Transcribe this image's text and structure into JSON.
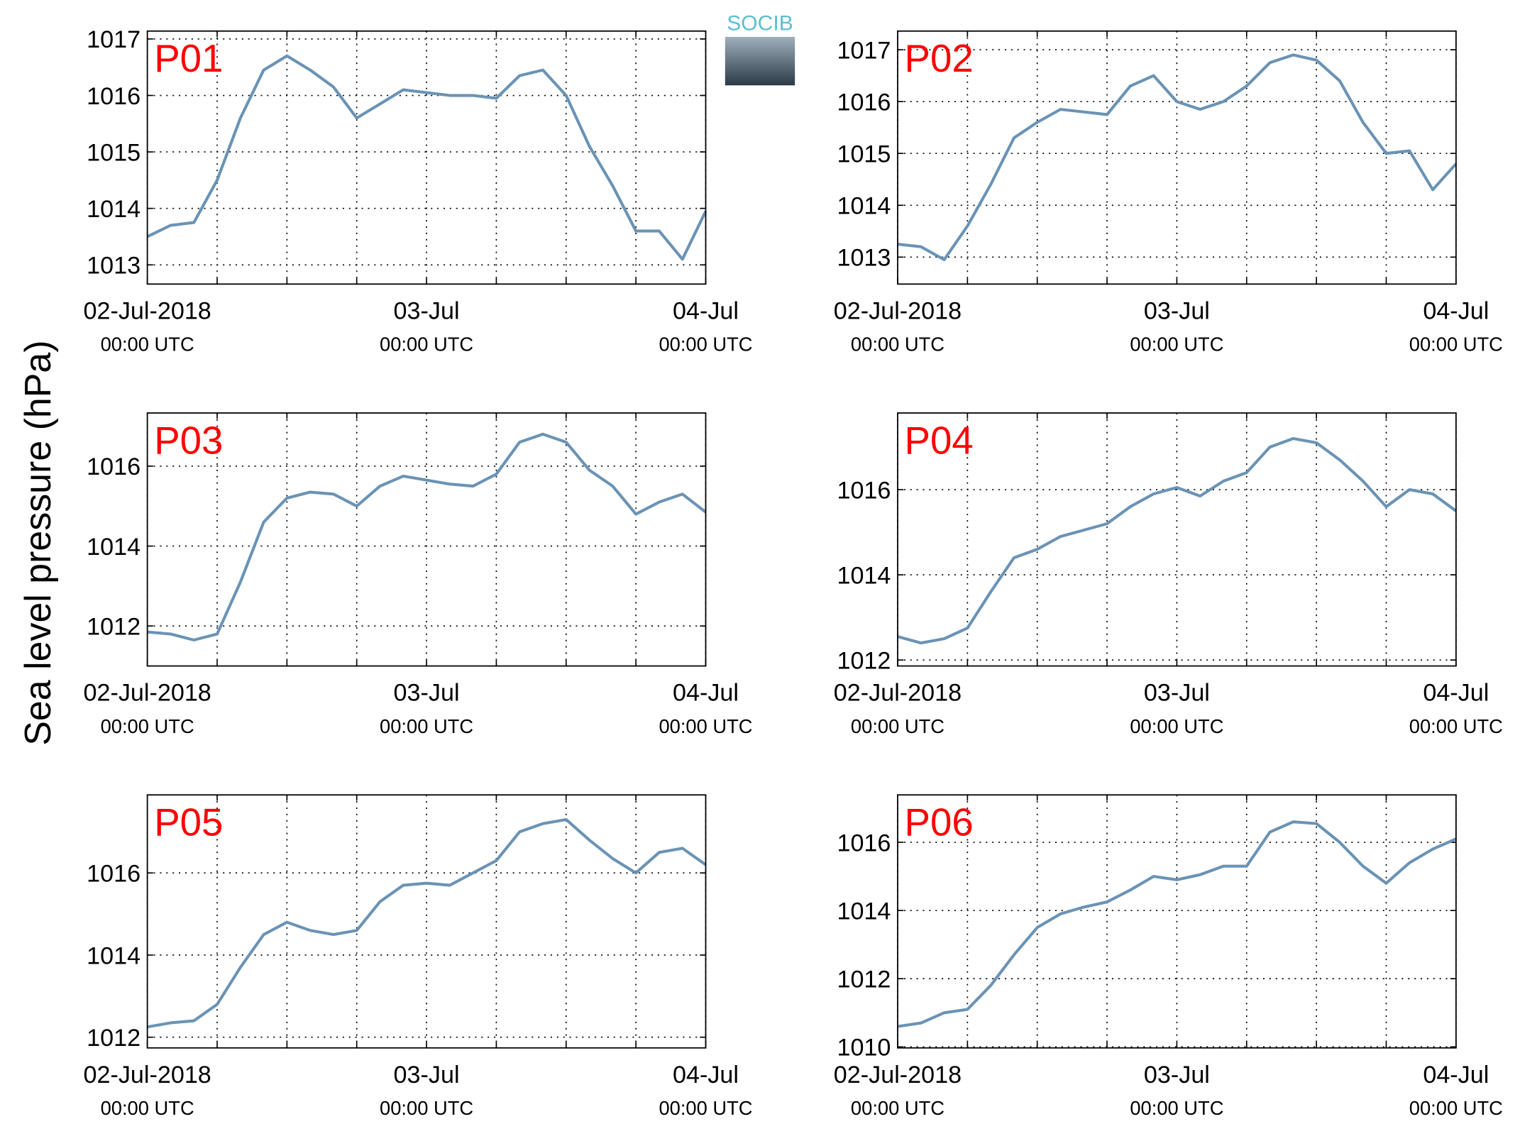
{
  "ylabel": "Sea level pressure (hPa)",
  "logo": "SOCIB",
  "chart_data": [
    {
      "type": "line",
      "title": "P01",
      "color": "#6a93b5",
      "grid": true,
      "x": [
        "2018-07-02T00:00",
        "2018-07-02T02:00",
        "2018-07-02T04:00",
        "2018-07-02T06:00",
        "2018-07-02T08:00",
        "2018-07-02T10:00",
        "2018-07-02T12:00",
        "2018-07-02T14:00",
        "2018-07-02T16:00",
        "2018-07-02T18:00",
        "2018-07-02T20:00",
        "2018-07-02T22:00",
        "2018-07-03T00:00",
        "2018-07-03T02:00",
        "2018-07-03T04:00",
        "2018-07-03T06:00",
        "2018-07-03T08:00",
        "2018-07-03T10:00",
        "2018-07-03T12:00",
        "2018-07-03T14:00",
        "2018-07-03T16:00",
        "2018-07-03T18:00",
        "2018-07-03T20:00",
        "2018-07-03T22:00",
        "2018-07-04T00:00"
      ],
      "values": [
        1013.5,
        1013.7,
        1013.75,
        1014.5,
        1015.6,
        1016.45,
        1016.7,
        1016.45,
        1016.15,
        1015.6,
        1015.85,
        1016.1,
        1016.05,
        1016.0,
        1016.0,
        1015.95,
        1016.35,
        1016.45,
        1016.0,
        1015.1,
        1014.4,
        1013.6,
        1013.6,
        1013.1,
        1013.95
      ],
      "xlim": [
        "2018-07-02T00:00",
        "2018-07-04T00:00"
      ],
      "xticks": [
        {
          "value": "2018-07-02T00:00",
          "label": "02-Jul-2018",
          "sublabel": "00:00 UTC"
        },
        {
          "value": "2018-07-03T00:00",
          "label": "03-Jul",
          "sublabel": "00:00 UTC"
        },
        {
          "value": "2018-07-04T00:00",
          "label": "04-Jul",
          "sublabel": "00:00 UTC"
        }
      ],
      "xminorticks": [
        "2018-07-02T06:00",
        "2018-07-02T12:00",
        "2018-07-02T18:00",
        "2018-07-03T06:00",
        "2018-07-03T12:00",
        "2018-07-03T18:00"
      ],
      "ylim": [
        1012.66,
        1017.14
      ],
      "yticks": [
        1013,
        1014,
        1015,
        1016,
        1017
      ]
    },
    {
      "type": "line",
      "title": "P02",
      "color": "#6a93b5",
      "grid": true,
      "x": [
        "2018-07-02T00:00",
        "2018-07-02T02:00",
        "2018-07-02T04:00",
        "2018-07-02T06:00",
        "2018-07-02T08:00",
        "2018-07-02T10:00",
        "2018-07-02T12:00",
        "2018-07-02T14:00",
        "2018-07-02T16:00",
        "2018-07-02T18:00",
        "2018-07-02T20:00",
        "2018-07-02T22:00",
        "2018-07-03T00:00",
        "2018-07-03T02:00",
        "2018-07-03T04:00",
        "2018-07-03T06:00",
        "2018-07-03T08:00",
        "2018-07-03T10:00",
        "2018-07-03T12:00",
        "2018-07-03T14:00",
        "2018-07-03T16:00",
        "2018-07-03T18:00",
        "2018-07-03T20:00",
        "2018-07-03T22:00",
        "2018-07-04T00:00"
      ],
      "values": [
        1013.25,
        1013.2,
        1012.95,
        1013.6,
        1014.4,
        1015.3,
        1015.6,
        1015.85,
        1015.8,
        1015.75,
        1016.3,
        1016.5,
        1016.0,
        1015.85,
        1016.0,
        1016.3,
        1016.75,
        1016.9,
        1016.8,
        1016.4,
        1015.6,
        1015.0,
        1015.05,
        1014.3,
        1014.8
      ],
      "xlim": [
        "2018-07-02T00:00",
        "2018-07-04T00:00"
      ],
      "xticks": [
        {
          "value": "2018-07-02T00:00",
          "label": "02-Jul-2018",
          "sublabel": "00:00 UTC"
        },
        {
          "value": "2018-07-03T00:00",
          "label": "03-Jul",
          "sublabel": "00:00 UTC"
        },
        {
          "value": "2018-07-04T00:00",
          "label": "04-Jul",
          "sublabel": "00:00 UTC"
        }
      ],
      "xminorticks": [
        "2018-07-02T06:00",
        "2018-07-02T12:00",
        "2018-07-02T18:00",
        "2018-07-03T06:00",
        "2018-07-03T12:00",
        "2018-07-03T18:00"
      ],
      "ylim": [
        1012.48,
        1017.36
      ],
      "yticks": [
        1013,
        1014,
        1015,
        1016,
        1017
      ]
    },
    {
      "type": "line",
      "title": "P03",
      "color": "#6a93b5",
      "grid": true,
      "x": [
        "2018-07-02T00:00",
        "2018-07-02T02:00",
        "2018-07-02T04:00",
        "2018-07-02T06:00",
        "2018-07-02T08:00",
        "2018-07-02T10:00",
        "2018-07-02T12:00",
        "2018-07-02T14:00",
        "2018-07-02T16:00",
        "2018-07-02T18:00",
        "2018-07-02T20:00",
        "2018-07-02T22:00",
        "2018-07-03T00:00",
        "2018-07-03T02:00",
        "2018-07-03T04:00",
        "2018-07-03T06:00",
        "2018-07-03T08:00",
        "2018-07-03T10:00",
        "2018-07-03T12:00",
        "2018-07-03T14:00",
        "2018-07-03T16:00",
        "2018-07-03T18:00",
        "2018-07-03T20:00",
        "2018-07-03T22:00",
        "2018-07-04T00:00"
      ],
      "values": [
        1011.85,
        1011.8,
        1011.65,
        1011.8,
        1013.1,
        1014.6,
        1015.2,
        1015.35,
        1015.3,
        1015.0,
        1015.5,
        1015.75,
        1015.65,
        1015.55,
        1015.5,
        1015.8,
        1016.6,
        1016.8,
        1016.6,
        1015.9,
        1015.5,
        1014.8,
        1015.1,
        1015.3,
        1014.85
      ],
      "xlim": [
        "2018-07-02T00:00",
        "2018-07-04T00:00"
      ],
      "xticks": [
        {
          "value": "2018-07-02T00:00",
          "label": "02-Jul-2018",
          "sublabel": "00:00 UTC"
        },
        {
          "value": "2018-07-03T00:00",
          "label": "03-Jul",
          "sublabel": "00:00 UTC"
        },
        {
          "value": "2018-07-04T00:00",
          "label": "04-Jul",
          "sublabel": "00:00 UTC"
        }
      ],
      "xminorticks": [
        "2018-07-02T06:00",
        "2018-07-02T12:00",
        "2018-07-02T18:00",
        "2018-07-03T06:00",
        "2018-07-03T12:00",
        "2018-07-03T18:00"
      ],
      "ylim": [
        1011.0,
        1017.33
      ],
      "yticks": [
        1012,
        1014,
        1016
      ]
    },
    {
      "type": "line",
      "title": "P04",
      "color": "#6a93b5",
      "grid": true,
      "x": [
        "2018-07-02T00:00",
        "2018-07-02T02:00",
        "2018-07-02T04:00",
        "2018-07-02T06:00",
        "2018-07-02T08:00",
        "2018-07-02T10:00",
        "2018-07-02T12:00",
        "2018-07-02T14:00",
        "2018-07-02T16:00",
        "2018-07-02T18:00",
        "2018-07-02T20:00",
        "2018-07-02T22:00",
        "2018-07-03T00:00",
        "2018-07-03T02:00",
        "2018-07-03T04:00",
        "2018-07-03T06:00",
        "2018-07-03T08:00",
        "2018-07-03T10:00",
        "2018-07-03T12:00",
        "2018-07-03T14:00",
        "2018-07-03T16:00",
        "2018-07-03T18:00",
        "2018-07-03T20:00",
        "2018-07-03T22:00",
        "2018-07-04T00:00"
      ],
      "values": [
        1012.55,
        1012.4,
        1012.5,
        1012.75,
        1013.6,
        1014.4,
        1014.6,
        1014.9,
        1015.05,
        1015.2,
        1015.6,
        1015.9,
        1016.05,
        1015.85,
        1016.2,
        1016.4,
        1017.0,
        1017.2,
        1017.1,
        1016.7,
        1016.2,
        1015.6,
        1016.0,
        1015.9,
        1015.5
      ],
      "xlim": [
        "2018-07-02T00:00",
        "2018-07-04T00:00"
      ],
      "xticks": [
        {
          "value": "2018-07-02T00:00",
          "label": "02-Jul-2018",
          "sublabel": "00:00 UTC"
        },
        {
          "value": "2018-07-03T00:00",
          "label": "03-Jul",
          "sublabel": "00:00 UTC"
        },
        {
          "value": "2018-07-04T00:00",
          "label": "04-Jul",
          "sublabel": "00:00 UTC"
        }
      ],
      "xminorticks": [
        "2018-07-02T06:00",
        "2018-07-02T12:00",
        "2018-07-02T18:00",
        "2018-07-03T06:00",
        "2018-07-03T12:00",
        "2018-07-03T18:00"
      ],
      "ylim": [
        1011.86,
        1017.8
      ],
      "yticks": [
        1012,
        1014,
        1016
      ]
    },
    {
      "type": "line",
      "title": "P05",
      "color": "#6a93b5",
      "grid": true,
      "x": [
        "2018-07-02T00:00",
        "2018-07-02T02:00",
        "2018-07-02T04:00",
        "2018-07-02T06:00",
        "2018-07-02T08:00",
        "2018-07-02T10:00",
        "2018-07-02T12:00",
        "2018-07-02T14:00",
        "2018-07-02T16:00",
        "2018-07-02T18:00",
        "2018-07-02T20:00",
        "2018-07-02T22:00",
        "2018-07-03T00:00",
        "2018-07-03T02:00",
        "2018-07-03T04:00",
        "2018-07-03T06:00",
        "2018-07-03T08:00",
        "2018-07-03T10:00",
        "2018-07-03T12:00",
        "2018-07-03T14:00",
        "2018-07-03T16:00",
        "2018-07-03T18:00",
        "2018-07-03T20:00",
        "2018-07-03T22:00",
        "2018-07-04T00:00"
      ],
      "values": [
        1012.25,
        1012.35,
        1012.4,
        1012.8,
        1013.7,
        1014.5,
        1014.8,
        1014.6,
        1014.5,
        1014.6,
        1015.3,
        1015.7,
        1015.75,
        1015.7,
        1016.0,
        1016.3,
        1017.0,
        1017.2,
        1017.3,
        1016.8,
        1016.35,
        1016.0,
        1016.5,
        1016.6,
        1016.2
      ],
      "xlim": [
        "2018-07-02T00:00",
        "2018-07-04T00:00"
      ],
      "xticks": [
        {
          "value": "2018-07-02T00:00",
          "label": "02-Jul-2018",
          "sublabel": "00:00 UTC"
        },
        {
          "value": "2018-07-03T00:00",
          "label": "03-Jul",
          "sublabel": "00:00 UTC"
        },
        {
          "value": "2018-07-04T00:00",
          "label": "04-Jul",
          "sublabel": "00:00 UTC"
        }
      ],
      "xminorticks": [
        "2018-07-02T06:00",
        "2018-07-02T12:00",
        "2018-07-02T18:00",
        "2018-07-03T06:00",
        "2018-07-03T12:00",
        "2018-07-03T18:00"
      ],
      "ylim": [
        1011.74,
        1017.9
      ],
      "yticks": [
        1012,
        1014,
        1016
      ]
    },
    {
      "type": "line",
      "title": "P06",
      "color": "#6a93b5",
      "grid": true,
      "x": [
        "2018-07-02T00:00",
        "2018-07-02T02:00",
        "2018-07-02T04:00",
        "2018-07-02T06:00",
        "2018-07-02T08:00",
        "2018-07-02T10:00",
        "2018-07-02T12:00",
        "2018-07-02T14:00",
        "2018-07-02T16:00",
        "2018-07-02T18:00",
        "2018-07-02T20:00",
        "2018-07-02T22:00",
        "2018-07-03T00:00",
        "2018-07-03T02:00",
        "2018-07-03T04:00",
        "2018-07-03T06:00",
        "2018-07-03T08:00",
        "2018-07-03T10:00",
        "2018-07-03T12:00",
        "2018-07-03T14:00",
        "2018-07-03T16:00",
        "2018-07-03T18:00",
        "2018-07-03T20:00",
        "2018-07-03T22:00",
        "2018-07-04T00:00"
      ],
      "values": [
        1010.6,
        1010.7,
        1011.0,
        1011.1,
        1011.8,
        1012.7,
        1013.5,
        1013.9,
        1014.1,
        1014.25,
        1014.6,
        1015.0,
        1014.9,
        1015.05,
        1015.3,
        1015.3,
        1016.3,
        1016.6,
        1016.55,
        1016.0,
        1015.3,
        1014.8,
        1015.4,
        1015.8,
        1016.1
      ],
      "xlim": [
        "2018-07-02T00:00",
        "2018-07-04T00:00"
      ],
      "xticks": [
        {
          "value": "2018-07-02T00:00",
          "label": "02-Jul-2018",
          "sublabel": "00:00 UTC"
        },
        {
          "value": "2018-07-03T00:00",
          "label": "03-Jul",
          "sublabel": "00:00 UTC"
        },
        {
          "value": "2018-07-04T00:00",
          "label": "04-Jul",
          "sublabel": "00:00 UTC"
        }
      ],
      "xminorticks": [
        "2018-07-02T06:00",
        "2018-07-02T12:00",
        "2018-07-02T18:00",
        "2018-07-03T06:00",
        "2018-07-03T12:00",
        "2018-07-03T18:00"
      ],
      "ylim": [
        1009.97,
        1017.39
      ],
      "yticks": [
        1010,
        1012,
        1014,
        1016
      ]
    }
  ]
}
